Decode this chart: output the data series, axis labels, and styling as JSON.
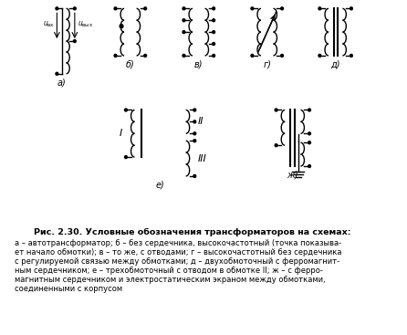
{
  "title": "Рис. 2.30. Условные обозначения трансформаторов на схемах:",
  "caption_lines": [
    "а – автотрансформатор; б – без сердечника, высокочастотный (точка показыва-",
    "ет начало обмотки); в – то же, с отводами; г – высокочастотный без сердечника",
    "с регулируемой связью между обмотками; д – двухобмоточный с ферромагнит-",
    "ным сердечником; е – трехобмоточный с отводом в обмотке II; ж – с ферро-",
    "магнитным сердечником и электростатическим экраном между обмотками,",
    "соединенными с корпусом"
  ],
  "bg_color": "#ffffff",
  "line_color": "#000000"
}
